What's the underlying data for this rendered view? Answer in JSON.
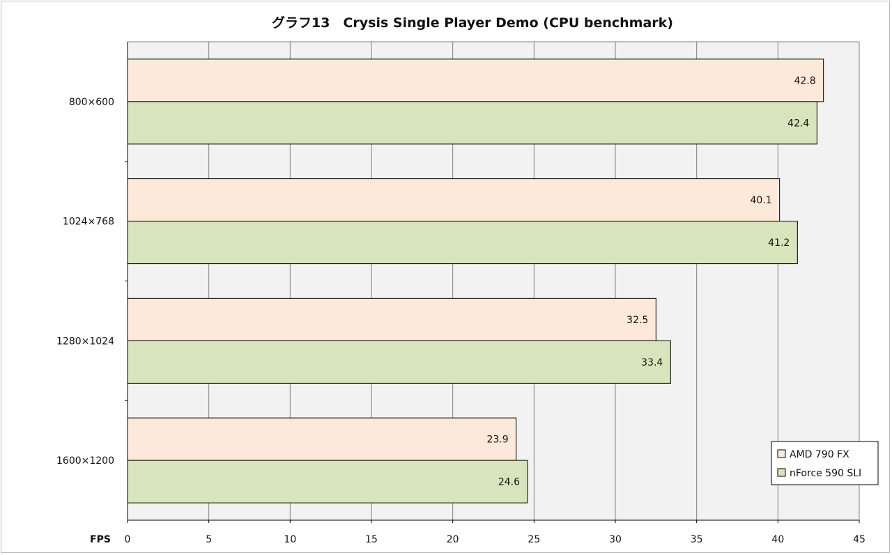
{
  "chart_data": {
    "type": "bar",
    "orientation": "horizontal",
    "title": "グラフ13　Crysis Single Player Demo (CPU benchmark)",
    "xlabel": "FPS",
    "ylabel": "",
    "xlim": [
      0,
      45
    ],
    "x_ticks": [
      0,
      5,
      10,
      15,
      20,
      25,
      30,
      35,
      40,
      45
    ],
    "grid": true,
    "legend_position": "bottom-right",
    "categories": [
      "800×600",
      "1024×768",
      "1280×1024",
      "1600×1200"
    ],
    "series": [
      {
        "name": "AMD 790  FX",
        "color": "#fde9d9",
        "values": [
          42.8,
          40.1,
          32.5,
          23.9
        ]
      },
      {
        "name": "nForce 590  SLI",
        "color": "#d8e4bc",
        "values": [
          42.4,
          41.2,
          33.4,
          24.6
        ]
      }
    ],
    "plot_background": "#f2f2f2",
    "gridline_color": "#808080",
    "bar_border_color": "#000000"
  }
}
